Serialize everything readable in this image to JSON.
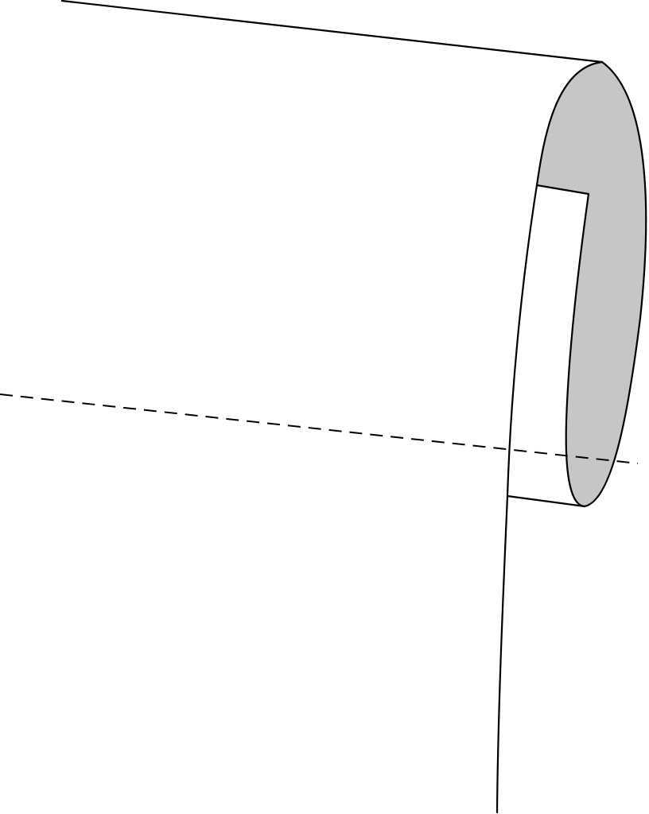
{
  "diagram": {
    "shape": "rolled sheet / cylinder end with cut-out notch",
    "colors": {
      "stroke": "#000000",
      "cap_fill": "#c6c6c6",
      "background": "#ffffff"
    },
    "dashed_axis": true
  }
}
